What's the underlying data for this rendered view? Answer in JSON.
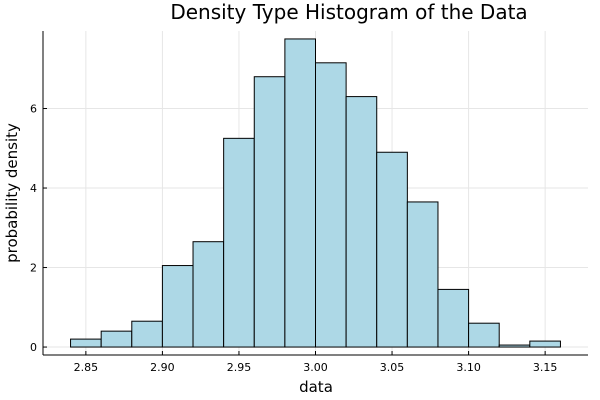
{
  "chart_data": {
    "type": "bar",
    "title": "Density Type Histogram of the Data",
    "xlabel": "data",
    "ylabel": "probability density",
    "bin_edges": [
      2.84,
      2.86,
      2.88,
      2.9,
      2.92,
      2.94,
      2.96,
      2.98,
      3.0,
      3.02,
      3.04,
      3.06,
      3.08,
      3.1,
      3.12,
      3.14,
      3.16
    ],
    "values": [
      0.2,
      0.4,
      0.65,
      2.05,
      2.65,
      5.25,
      6.8,
      7.75,
      7.15,
      6.3,
      4.9,
      3.65,
      1.45,
      0.6,
      0.05,
      0.15
    ],
    "xlim": [
      2.822,
      3.178
    ],
    "ylim": [
      -0.2,
      7.95
    ],
    "xticks": [
      2.85,
      2.9,
      2.95,
      3.0,
      3.05,
      3.1,
      3.15
    ],
    "xtick_labels": [
      "2.85",
      "2.90",
      "2.95",
      "3.00",
      "3.05",
      "3.10",
      "3.15"
    ],
    "yticks": [
      0,
      2,
      4,
      6
    ],
    "ytick_labels": [
      "0",
      "2",
      "4",
      "6"
    ],
    "grid": true,
    "legend": "none",
    "bar_color": "#add8e6"
  }
}
